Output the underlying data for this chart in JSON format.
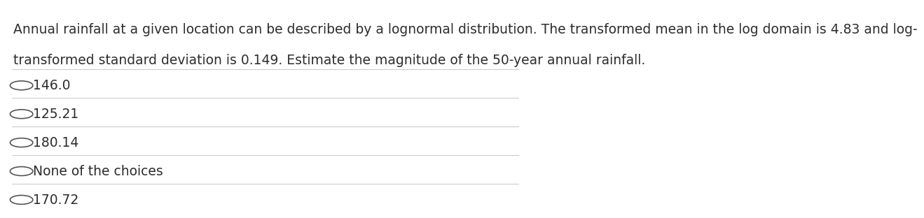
{
  "question_line1": "Annual rainfall at a given location can be described by a lognormal distribution. The transformed mean in the log domain is 4.83 and log-",
  "question_line2": "transformed standard deviation is 0.149. Estimate the magnitude of the 50-year annual rainfall.",
  "choices": [
    "146.0",
    "125.21",
    "180.14",
    "None of the choices",
    "170.72"
  ],
  "background_color": "#ffffff",
  "text_color": "#2d2d2d",
  "line_color": "#cccccc",
  "question_fontsize": 13.5,
  "choice_fontsize": 13.5,
  "circle_color": "#555555"
}
